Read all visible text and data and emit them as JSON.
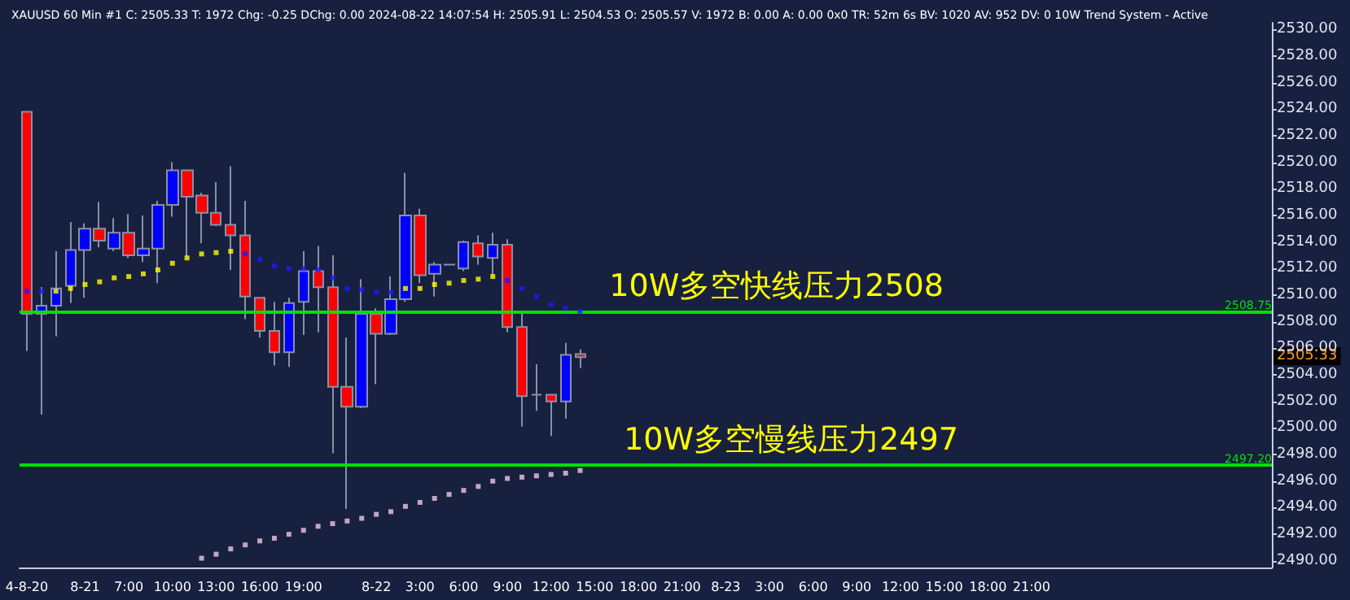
{
  "chart_data": {
    "type": "candlestick",
    "title": "XAUUSD 60 Min #1 C: 2505.33 T: 1972 Chg: -0.25 DChg: 0.00 2024-08-22 14:07:54 H: 2505.91 L: 2504.53 O: 2505.57 V: 1972 B: 0.00 A: 0.00 0x0 TR: 52m 6s BV: 1020 AV: 952 DV: 0 10W Trend System - Active",
    "categories": [
      "4-8-20",
      null,
      null,
      null,
      "8-21",
      null,
      null,
      "7:00",
      null,
      null,
      "10:00",
      null,
      null,
      "13:00",
      null,
      null,
      "16:00",
      null,
      null,
      "19:00",
      null,
      null,
      null,
      null,
      "8-22",
      null,
      null,
      "3:00",
      null,
      null,
      "6:00",
      null,
      null,
      "9:00",
      null,
      null,
      "12:00",
      null,
      null,
      "15:00",
      null,
      null,
      "18:00",
      null,
      null,
      "21:00",
      null,
      null,
      "8-23",
      null,
      null,
      "3:00",
      null,
      null,
      "6:00",
      null,
      null,
      "9:00",
      null,
      null,
      "12:00",
      null,
      null,
      "15:00",
      null,
      null,
      "18:00",
      null,
      null,
      "21:00",
      null,
      null,
      null,
      null,
      null,
      null,
      null,
      null,
      null,
      null,
      null,
      null,
      null,
      null,
      null,
      null
    ],
    "ohlc": [
      [
        2523.8,
        2523.8,
        2505.8,
        2508.6
      ],
      [
        2508.6,
        2510.6,
        2501.0,
        2509.2
      ],
      [
        2509.2,
        2513.3,
        2506.9,
        2510.5
      ],
      [
        2510.7,
        2515.5,
        2509.4,
        2513.4
      ],
      [
        2513.4,
        2515.4,
        2509.8,
        2515.0
      ],
      [
        2515.0,
        2517.0,
        2513.6,
        2514.1
      ],
      [
        2513.5,
        2515.8,
        2513.3,
        2514.7
      ],
      [
        2514.7,
        2516.1,
        2512.8,
        2513.0
      ],
      [
        2513.0,
        2516.0,
        2512.5,
        2513.5
      ],
      [
        2513.5,
        2517.1,
        2510.9,
        2516.8
      ],
      [
        2516.8,
        2520.0,
        2515.9,
        2519.4
      ],
      [
        2519.4,
        2519.4,
        2512.9,
        2517.4
      ],
      [
        2517.5,
        2517.7,
        2513.9,
        2516.2
      ],
      [
        2516.2,
        2518.5,
        2515.2,
        2515.3
      ],
      [
        2515.3,
        2519.7,
        2511.9,
        2514.5
      ],
      [
        2514.5,
        2517.1,
        2508.2,
        2509.9
      ],
      [
        2509.8,
        2509.8,
        2506.8,
        2507.3
      ],
      [
        2507.3,
        2509.5,
        2504.7,
        2505.7
      ],
      [
        2505.7,
        2509.8,
        2504.6,
        2509.4
      ],
      [
        2509.5,
        2513.3,
        2507.0,
        2511.8
      ],
      [
        2511.8,
        2513.7,
        2507.2,
        2510.6
      ],
      [
        2510.6,
        2513.0,
        2498.1,
        2503.1
      ],
      [
        2503.1,
        2506.8,
        2493.9,
        2501.6
      ],
      [
        2501.6,
        2511.2,
        2501.5,
        2508.6
      ],
      [
        2508.6,
        2509.0,
        2503.3,
        2507.1
      ],
      [
        2507.1,
        2511.4,
        2507.0,
        2509.7
      ],
      [
        2509.7,
        2519.2,
        2509.5,
        2516.0
      ],
      [
        2516.0,
        2516.5,
        2510.9,
        2511.5
      ],
      [
        2511.6,
        2512.5,
        2509.9,
        2512.3
      ],
      [
        2512.3,
        2512.3,
        2512.3,
        2512.3
      ],
      [
        2512.0,
        2514.1,
        2511.8,
        2514.0
      ],
      [
        2513.9,
        2514.5,
        2512.3,
        2512.9
      ],
      [
        2512.8,
        2514.7,
        2511.5,
        2513.8
      ],
      [
        2513.8,
        2514.2,
        2507.2,
        2507.6
      ],
      [
        2507.6,
        2508.7,
        2500.1,
        2502.4
      ],
      [
        2502.5,
        2504.8,
        2501.3,
        2502.5
      ],
      [
        2502.5,
        2502.5,
        2499.4,
        2502.0
      ],
      [
        2502.0,
        2506.4,
        2500.7,
        2505.5
      ],
      [
        2505.57,
        2505.91,
        2504.53,
        2505.33
      ],
      null,
      null,
      null,
      null,
      null,
      null,
      null,
      null,
      null,
      null,
      null,
      null,
      null,
      null,
      null,
      null,
      null,
      null,
      null,
      null,
      null,
      null,
      null,
      null,
      null,
      null,
      null,
      null,
      null,
      null,
      null,
      null,
      null,
      null,
      null,
      null,
      null,
      null,
      null,
      null,
      null,
      null,
      null,
      null,
      null,
      null,
      null
    ],
    "colors": [
      "#ff0000",
      "#0000ff",
      "#0000ff",
      "#0000ff",
      "#0000ff",
      "#ff0000",
      "#0000ff",
      "#ff0000",
      "#0000ff",
      "#0000ff",
      "#0000ff",
      "#ff0000",
      "#ff0000",
      "#ff0000",
      "#ff0000",
      "#ff0000",
      "#ff0000",
      "#ff0000",
      "#0000ff",
      "#0000ff",
      "#ff0000",
      "#ff0000",
      "#ff0000",
      "#0000ff",
      "#ff0000",
      "#0000ff",
      "#0000ff",
      "#ff0000",
      "#0000ff",
      "#8a8fa8",
      "#0000ff",
      "#ff0000",
      "#0000ff",
      "#ff0000",
      "#ff0000",
      "#8a8fa8",
      "#ff0000",
      "#0000ff",
      "#ff0000",
      null,
      null,
      null,
      null,
      null,
      null,
      null,
      null,
      null,
      null,
      null,
      null,
      null,
      null,
      null,
      null,
      null,
      null,
      null,
      null,
      null,
      null,
      null,
      null,
      null,
      null,
      null,
      null,
      null,
      null,
      null,
      null,
      null,
      null,
      null,
      null,
      null,
      null,
      null,
      null,
      null,
      null,
      null,
      null,
      null,
      null,
      null
    ],
    "series": [
      {
        "type": "scatter",
        "colors": [
          "#1a1aff",
          "#1a1aff",
          "#ffff00",
          "#ffff00",
          "#ffff00",
          "#ffff00",
          "#ffff00",
          "#ffff00",
          "#ffff00",
          "#ffff00",
          "#ffff00",
          "#ffff00",
          "#ffff00",
          "#ffff00",
          "#ffff00",
          "#1a1aff",
          "#1a1aff",
          "#1a1aff",
          "#1a1aff",
          "#1a1aff",
          "#1a1aff",
          "#1a1aff",
          "#1a1aff",
          "#1a1aff",
          "#1a1aff",
          "#1a1aff",
          "#ffff00",
          "#ffff00",
          "#ffff00",
          "#ffff00",
          "#ffff00",
          "#ffff00",
          "#ffff00",
          "#1a1aff",
          "#1a1aff",
          "#1a1aff",
          "#1a1aff",
          "#1a1aff",
          "#1a1aff",
          null,
          null,
          null,
          null,
          null,
          null,
          null,
          null,
          null,
          null,
          null,
          null,
          null,
          null,
          null,
          null,
          null,
          null,
          null,
          null,
          null,
          null,
          null,
          null,
          null,
          null,
          null,
          null,
          null,
          null,
          null,
          null,
          null,
          null,
          null,
          null,
          null,
          null,
          null,
          null,
          null,
          null,
          null,
          null,
          null,
          null,
          null
        ],
        "values": [
          2510.3,
          2510.3,
          2510.3,
          2510.5,
          2510.8,
          2511.0,
          2511.3,
          2511.4,
          2511.6,
          2511.9,
          2512.4,
          2512.8,
          2513.1,
          2513.2,
          2513.3,
          2513.1,
          2512.7,
          2512.2,
          2512.0,
          2512.0,
          2511.9,
          2511.3,
          2510.5,
          2510.4,
          2510.2,
          2510.2,
          2510.5,
          2510.5,
          2510.8,
          2510.9,
          2511.1,
          2511.2,
          2511.4,
          2511.1,
          2510.5,
          2509.9,
          2509.3,
          2509.0,
          2508.8,
          null,
          null,
          null,
          null,
          null,
          null,
          null,
          null,
          null,
          null,
          null,
          null,
          null,
          null,
          null,
          null,
          null,
          null,
          null,
          null,
          null,
          null,
          null,
          null,
          null,
          null,
          null,
          null,
          null,
          null,
          null,
          null,
          null,
          null,
          null,
          null,
          null,
          null,
          null,
          null,
          null,
          null,
          null,
          null,
          null,
          null,
          null
        ]
      },
      {
        "type": "scatter",
        "color": "#f0c8e0",
        "values": [
          null,
          null,
          null,
          null,
          null,
          null,
          null,
          null,
          null,
          null,
          null,
          null,
          2490.2,
          2490.5,
          2490.9,
          2491.2,
          2491.5,
          2491.7,
          2492.0,
          2492.3,
          2492.6,
          2492.8,
          2493.0,
          2493.2,
          2493.5,
          2493.7,
          2494.1,
          2494.4,
          2494.7,
          2495.0,
          2495.3,
          2495.6,
          2496.0,
          2496.2,
          2496.3,
          2496.4,
          2496.5,
          2496.6,
          2496.8,
          null,
          null,
          null,
          null,
          null,
          null,
          null,
          null,
          null,
          null,
          null,
          null,
          null,
          null,
          null,
          null,
          null,
          null,
          null,
          null,
          null,
          null,
          null,
          null,
          null,
          null,
          null,
          null,
          null,
          null,
          null,
          null,
          null,
          null,
          null,
          null,
          null,
          null,
          null,
          null,
          null,
          null,
          null,
          null,
          null,
          null,
          null
        ]
      }
    ],
    "ylim": [
      2489.5,
      2530.5
    ],
    "yticks": [
      {
        "value": 2490,
        "label": "2490.00"
      },
      {
        "value": 2492,
        "label": "2492.00"
      },
      {
        "value": 2494,
        "label": "2494.00"
      },
      {
        "value": 2496,
        "label": "2496.00"
      },
      {
        "value": 2498,
        "label": "2498.00"
      },
      {
        "value": 2500,
        "label": "2500.00"
      },
      {
        "value": 2502,
        "label": "2502.00"
      },
      {
        "value": 2504,
        "label": "2504.00"
      },
      {
        "value": 2506,
        "label": "2506.00"
      },
      {
        "value": 2508,
        "label": "2508.00"
      },
      {
        "value": 2510,
        "label": "2510.00"
      },
      {
        "value": 2512,
        "label": "2512.00"
      },
      {
        "value": 2514,
        "label": "2514.00"
      },
      {
        "value": 2516,
        "label": "2516.00"
      },
      {
        "value": 2518,
        "label": "2518.00"
      },
      {
        "value": 2520,
        "label": "2520.00"
      },
      {
        "value": 2522,
        "label": "2522.00"
      },
      {
        "value": 2524,
        "label": "2524.00"
      },
      {
        "value": 2526,
        "label": "2526.00"
      },
      {
        "value": 2528,
        "label": "2528.00"
      },
      {
        "value": 2530,
        "label": "2530.00"
      }
    ],
    "ref_lines": [
      {
        "axis": "y",
        "value": 2508.75,
        "label": "2508.75",
        "color": "#00e000"
      },
      {
        "axis": "y",
        "value": 2497.2,
        "label": "2497.20",
        "color": "#00e000"
      }
    ],
    "annotations": [
      {
        "text": "10W多空快线压力2508",
        "y": 2508.75
      },
      {
        "text": "10W多空慢线压力2497",
        "y": 2497.2
      },
      "2505.33"
    ],
    "marker": "square",
    "grid": false
  }
}
